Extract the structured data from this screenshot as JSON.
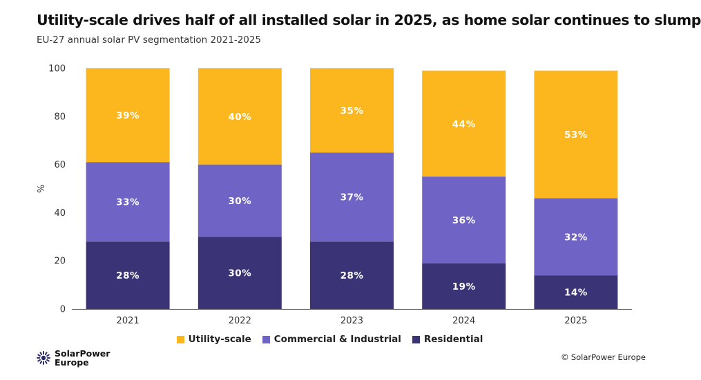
{
  "header": {
    "title": "Utility-scale drives half of all installed solar in 2025, as home solar continues to slump",
    "subtitle": "EU-27 annual solar PV segmentation 2021-2025"
  },
  "chart_data": {
    "type": "bar",
    "stacked": true,
    "categories": [
      "2021",
      "2022",
      "2023",
      "2024",
      "2025"
    ],
    "series": [
      {
        "name": "Residential",
        "values": [
          28,
          30,
          28,
          19,
          14
        ],
        "labels": [
          "28%",
          "30%",
          "28%",
          "19%",
          "14%"
        ],
        "color": "#3a3375"
      },
      {
        "name": "Commercial & Industrial",
        "values": [
          33,
          30,
          37,
          36,
          32
        ],
        "labels": [
          "33%",
          "30%",
          "37%",
          "36%",
          "32%"
        ],
        "color": "#6f63c5"
      },
      {
        "name": "Utility-scale",
        "values": [
          39,
          40,
          35,
          44,
          53
        ],
        "labels": [
          "39%",
          "40%",
          "35%",
          "44%",
          "53%"
        ],
        "color": "#fcb71e"
      }
    ],
    "legend_order": [
      "Utility-scale",
      "Commercial & Industrial",
      "Residential"
    ],
    "ylabel": "%",
    "ylim": [
      0,
      100
    ],
    "yticks": [
      "0",
      "20",
      "40",
      "60",
      "80",
      "100"
    ],
    "legend_position": "bottom-center",
    "grid": false
  },
  "logo": {
    "line1": "SolarPower",
    "line2": "Europe"
  },
  "footer": {
    "copyright_symbol": "©",
    "copyright": "SolarPower Europe"
  }
}
